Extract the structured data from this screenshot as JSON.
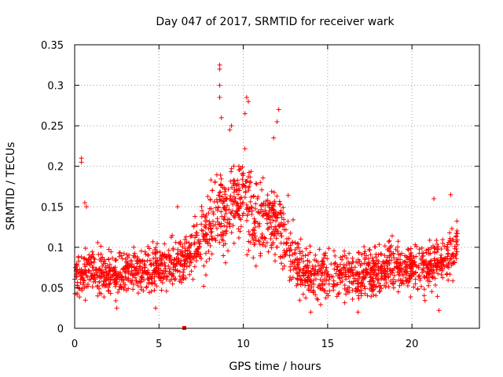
{
  "chart_data": {
    "type": "scatter",
    "title": "Day 047 of 2017, SRMTID for receiver wark",
    "xlabel": "GPS time / hours",
    "ylabel": "SRMTID / TECUs",
    "xlim": [
      0,
      24
    ],
    "ylim": [
      0,
      0.35
    ],
    "grid": true,
    "marker": "+",
    "color": "#ff0000",
    "x_ticks": [
      0,
      5,
      10,
      15,
      20
    ],
    "x_tick_labels": [
      "0",
      "5",
      "10",
      "15",
      "20"
    ],
    "y_ticks": [
      0,
      0.05,
      0.1,
      0.15,
      0.2,
      0.25,
      0.3,
      0.35
    ],
    "y_tick_labels": [
      "0",
      "0.05",
      "0.1",
      "0.15",
      "0.2",
      "0.25",
      "0.3",
      "0.35"
    ],
    "trend": {
      "x": [
        0,
        1,
        2,
        3,
        4,
        5,
        6,
        7,
        7.5,
        8,
        8.5,
        9,
        9.5,
        10,
        10.5,
        11,
        11.5,
        12,
        12.5,
        13,
        14,
        15,
        16,
        17,
        18,
        19,
        20,
        21,
        22,
        22.7
      ],
      "y": [
        0.06,
        0.075,
        0.065,
        0.068,
        0.072,
        0.075,
        0.08,
        0.095,
        0.105,
        0.125,
        0.15,
        0.14,
        0.16,
        0.17,
        0.14,
        0.13,
        0.14,
        0.135,
        0.11,
        0.08,
        0.065,
        0.07,
        0.07,
        0.06,
        0.075,
        0.08,
        0.07,
        0.075,
        0.09,
        0.1
      ]
    },
    "spread_note": "About 2000 points densely scattered around the trend with +/-0.04 spread; the series shown below are the notable individual values read off the plot.",
    "outliers": {
      "x": [
        0.4,
        0.4,
        8.6,
        8.6,
        8.6,
        8.6,
        8.7,
        10.2,
        10.3,
        10.1,
        12.1,
        12.0,
        9.3,
        9.2,
        22.3,
        21.3,
        6.1,
        0.6,
        0.7,
        14.0,
        16.8,
        21.6,
        4.8,
        2.5,
        11.8
      ],
      "y": [
        0.21,
        0.205,
        0.325,
        0.32,
        0.3,
        0.285,
        0.26,
        0.285,
        0.28,
        0.265,
        0.27,
        0.255,
        0.25,
        0.245,
        0.165,
        0.16,
        0.15,
        0.155,
        0.15,
        0.02,
        0.02,
        0.022,
        0.025,
        0.025,
        0.235
      ]
    },
    "axis_markers": {
      "x": [
        6.5
      ],
      "y": [
        0
      ],
      "style": "filled-square"
    }
  }
}
